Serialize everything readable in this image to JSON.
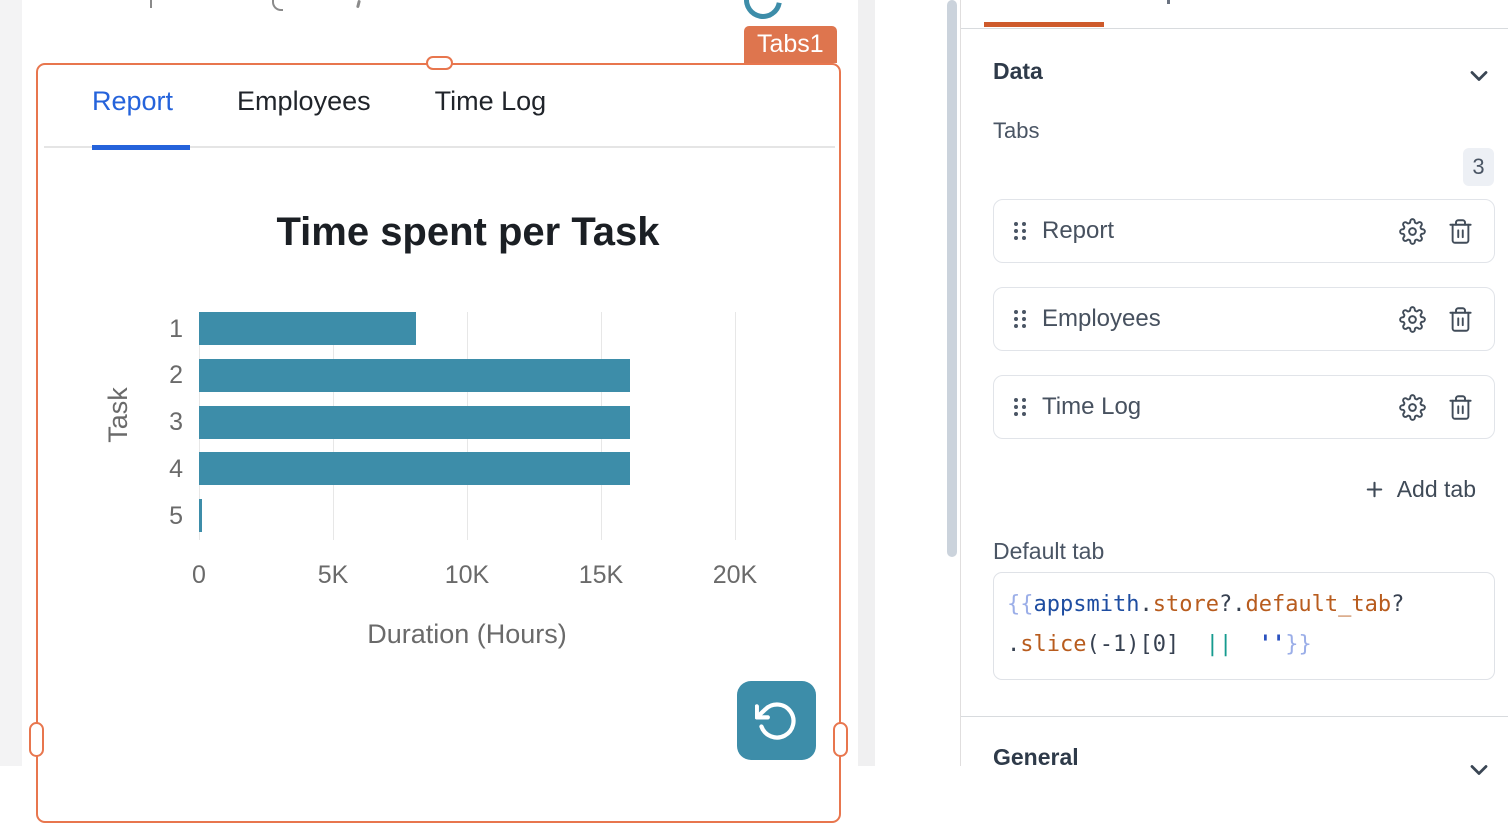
{
  "canvas": {
    "widget_name_tag": "Tabs1",
    "tabs": [
      {
        "label": "Report",
        "active": true
      },
      {
        "label": "Employees",
        "active": false
      },
      {
        "label": "Time Log",
        "active": false
      }
    ]
  },
  "chart_data": {
    "type": "bar",
    "orientation": "horizontal",
    "title": "Time spent per Task",
    "xlabel": "Duration (Hours)",
    "ylabel": "Task",
    "categories": [
      "1",
      "2",
      "3",
      "4",
      "5"
    ],
    "values": [
      8100,
      16100,
      16100,
      16100,
      100
    ],
    "xlim": [
      0,
      20000
    ],
    "xticks": [
      {
        "v": 0,
        "label": "0"
      },
      {
        "v": 5000,
        "label": "5K"
      },
      {
        "v": 10000,
        "label": "10K"
      },
      {
        "v": 15000,
        "label": "15K"
      },
      {
        "v": 20000,
        "label": "20K"
      }
    ],
    "grid": true,
    "legend": false
  },
  "panel": {
    "data_section_title": "Data",
    "tabs_field_label": "Tabs",
    "tabs_count": "3",
    "tab_items": [
      {
        "label": "Report"
      },
      {
        "label": "Employees"
      },
      {
        "label": "Time Log"
      }
    ],
    "add_tab_label": "Add tab",
    "default_tab_label": "Default tab",
    "default_tab_code": {
      "text": "{{appsmith.store?.default_tab?.slice(-1)[0]  ||  ''}}",
      "lines": [
        [
          {
            "t": "{{",
            "c": "brace"
          },
          {
            "t": "appsmith",
            "c": "def"
          },
          {
            "t": ".",
            "c": "p"
          },
          {
            "t": "store",
            "c": "prop"
          },
          {
            "t": "?.",
            "c": "p"
          },
          {
            "t": "default_tab",
            "c": "prop"
          },
          {
            "t": "?",
            "c": "p"
          }
        ],
        [
          {
            "t": ".",
            "c": "p"
          },
          {
            "t": "slice",
            "c": "prop"
          },
          {
            "t": "(-1)[0]",
            "c": "p"
          },
          {
            "t": "  ",
            "c": "p"
          },
          {
            "t": "||",
            "c": "op"
          },
          {
            "t": "  ",
            "c": "p"
          },
          {
            "t": "''",
            "c": "str"
          },
          {
            "t": "}}",
            "c": "brace"
          }
        ]
      ]
    },
    "general_section_title": "General"
  },
  "colors": {
    "selection_orange": "#E8764E",
    "widget_tag_orange": "#DE754E",
    "panel_accent_orange": "#CE5A2B",
    "bar_teal": "#3D8DA9",
    "active_tab_blue": "#2563DB"
  }
}
